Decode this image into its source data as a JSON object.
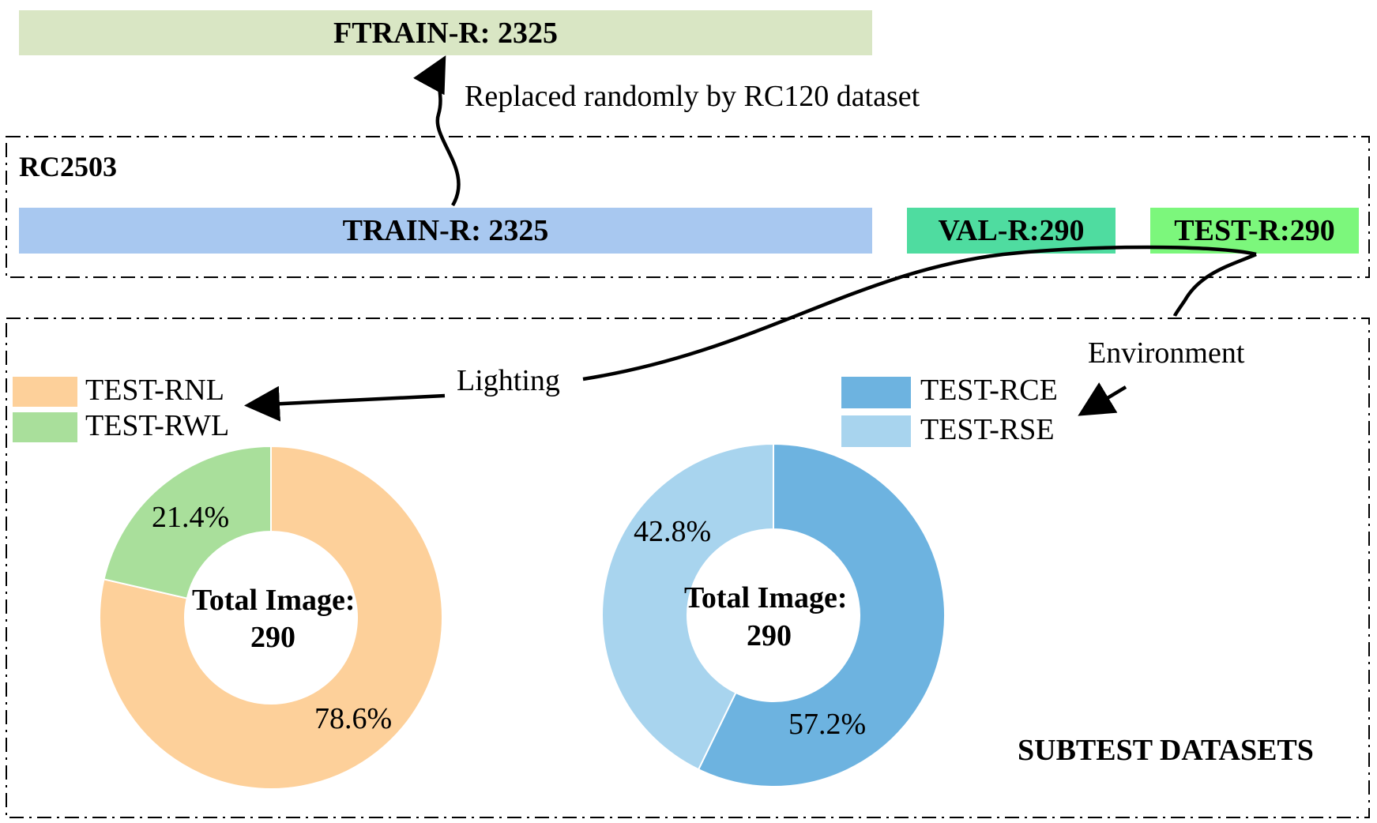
{
  "ftrain": {
    "label": "FTRAIN-R: 2325",
    "color": "#d9e6c4"
  },
  "replace_note": "Replaced randomly by RC120 dataset",
  "rc_section": {
    "title": "RC2503",
    "train": {
      "label": "TRAIN-R: 2325",
      "color": "#a8c8f0"
    },
    "val": {
      "label": "VAL-R:290",
      "color": "#4fdca0"
    },
    "test": {
      "label": "TEST-R:290",
      "color": "#7cf77c"
    }
  },
  "subtest": {
    "title": "SUBTEST DATASETS",
    "lighting_label": "Lighting",
    "environment_label": "Environment"
  },
  "chart_data": [
    {
      "type": "pie",
      "donut": true,
      "center_title": "Total Image:",
      "center_value": "290",
      "legend": "top-left",
      "slices": [
        {
          "name": "TEST-RNL",
          "value": 78.6,
          "label": "78.6%",
          "color": "#fdd09a"
        },
        {
          "name": "TEST-RWL",
          "value": 21.4,
          "label": "21.4%",
          "color": "#a9df9b"
        }
      ]
    },
    {
      "type": "pie",
      "donut": true,
      "center_title": "Total Image:",
      "center_value": "290",
      "legend": "top-left",
      "slices": [
        {
          "name": "TEST-RCE",
          "value": 57.2,
          "label": "57.2%",
          "color": "#6db3e0"
        },
        {
          "name": "TEST-RSE",
          "value": 42.8,
          "label": "42.8%",
          "color": "#a8d4ee"
        }
      ]
    }
  ]
}
